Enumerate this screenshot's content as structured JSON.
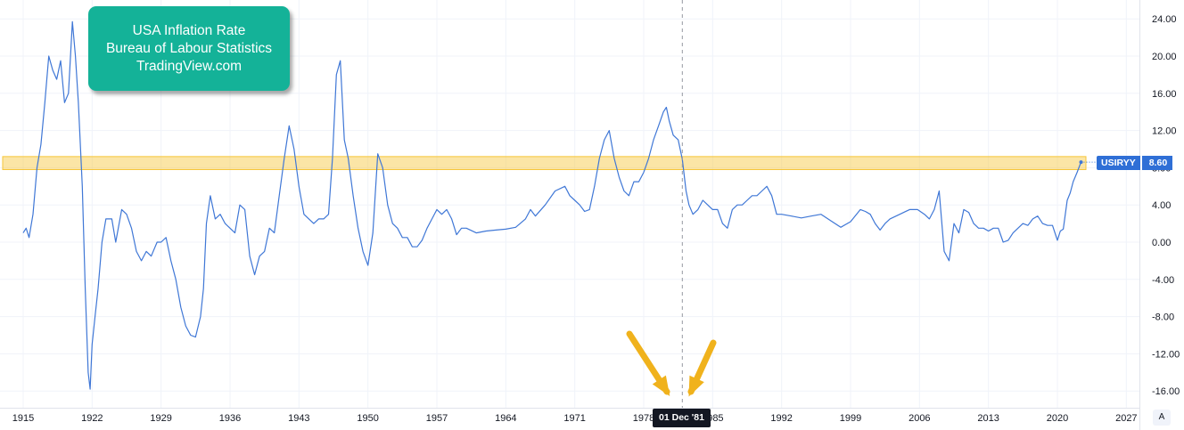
{
  "title_box": {
    "line1": "USA Inflation Rate",
    "line2": "Bureau of Labour Statistics",
    "line3": "TradingView.com"
  },
  "symbol": {
    "name": "USIRYY",
    "value": "8.60"
  },
  "crosshair_label": "01 Dec '81",
  "auto_label": "A",
  "colors": {
    "line": "#3f77d6",
    "highlight": "#f6c63a",
    "title_bg": "#14b298",
    "arrow": "#f0b21c",
    "symbol_bg": "#2f6fd6"
  },
  "chart_data": {
    "type": "line",
    "title": "USA Inflation Rate",
    "series": [
      {
        "name": "USIRYY",
        "x": [
          1915.0,
          1915.3,
          1915.6,
          1916.0,
          1916.4,
          1916.8,
          1917.2,
          1917.6,
          1918.0,
          1918.4,
          1918.8,
          1919.2,
          1919.6,
          1920.0,
          1920.3,
          1920.6,
          1921.0,
          1921.3,
          1921.6,
          1921.8,
          1922.0,
          1922.3,
          1922.6,
          1923.0,
          1923.4,
          1924.0,
          1924.4,
          1925.0,
          1925.5,
          1926.0,
          1926.5,
          1927.0,
          1927.5,
          1928.0,
          1928.6,
          1929.0,
          1929.5,
          1930.0,
          1930.5,
          1931.0,
          1931.5,
          1932.0,
          1932.5,
          1933.0,
          1933.3,
          1933.6,
          1934.0,
          1934.5,
          1935.0,
          1935.5,
          1936.0,
          1936.5,
          1937.0,
          1937.5,
          1938.0,
          1938.5,
          1939.0,
          1939.5,
          1940.0,
          1940.5,
          1941.0,
          1941.5,
          1942.0,
          1942.5,
          1943.0,
          1943.5,
          1944.0,
          1944.5,
          1945.0,
          1945.5,
          1946.0,
          1946.4,
          1946.8,
          1947.2,
          1947.6,
          1948.0,
          1948.5,
          1949.0,
          1949.5,
          1950.0,
          1950.5,
          1951.0,
          1951.5,
          1952.0,
          1952.5,
          1953.0,
          1953.5,
          1954.0,
          1954.5,
          1955.0,
          1955.5,
          1956.0,
          1956.5,
          1957.0,
          1957.5,
          1958.0,
          1958.5,
          1959.0,
          1959.5,
          1960.0,
          1961.0,
          1962.0,
          1963.0,
          1964.0,
          1965.0,
          1966.0,
          1966.5,
          1967.0,
          1968.0,
          1969.0,
          1970.0,
          1970.5,
          1971.0,
          1971.5,
          1972.0,
          1972.5,
          1973.0,
          1973.5,
          1974.0,
          1974.5,
          1975.0,
          1975.5,
          1976.0,
          1976.5,
          1977.0,
          1977.5,
          1978.0,
          1978.5,
          1979.0,
          1979.5,
          1980.0,
          1980.3,
          1980.6,
          1981.0,
          1981.5,
          1981.92,
          1982.3,
          1982.6,
          1983.0,
          1983.5,
          1984.0,
          1984.5,
          1985.0,
          1985.5,
          1986.0,
          1986.5,
          1987.0,
          1987.5,
          1988.0,
          1988.5,
          1989.0,
          1989.5,
          1990.0,
          1990.5,
          1991.0,
          1991.5,
          1992.0,
          1993.0,
          1994.0,
          1995.0,
          1996.0,
          1997.0,
          1998.0,
          1999.0,
          2000.0,
          2000.5,
          2001.0,
          2001.5,
          2002.0,
          2002.5,
          2003.0,
          2004.0,
          2005.0,
          2005.8,
          2006.5,
          2007.0,
          2007.5,
          2008.0,
          2008.5,
          2009.0,
          2009.5,
          2010.0,
          2010.5,
          2011.0,
          2011.5,
          2012.0,
          2012.5,
          2013.0,
          2013.5,
          2014.0,
          2014.5,
          2015.0,
          2015.5,
          2016.0,
          2016.5,
          2017.0,
          2017.5,
          2018.0,
          2018.5,
          2019.0,
          2019.5,
          2020.0,
          2020.3,
          2020.6,
          2021.0,
          2021.3,
          2021.6,
          2022.0,
          2022.4
        ],
        "values": [
          1.0,
          1.5,
          0.5,
          3.0,
          8.0,
          10.5,
          15.0,
          20.0,
          18.5,
          17.5,
          19.5,
          15.0,
          16.0,
          23.7,
          20.0,
          15.0,
          6.0,
          -5.0,
          -14.0,
          -15.8,
          -11.0,
          -8.0,
          -5.0,
          0.0,
          2.5,
          2.5,
          0.0,
          3.5,
          3.0,
          1.5,
          -1.0,
          -2.0,
          -1.0,
          -1.5,
          0.0,
          0.0,
          0.5,
          -2.0,
          -4.0,
          -7.0,
          -9.0,
          -10.0,
          -10.2,
          -8.0,
          -5.0,
          2.0,
          5.0,
          2.5,
          3.0,
          2.0,
          1.5,
          1.0,
          4.0,
          3.5,
          -1.5,
          -3.5,
          -1.5,
          -1.0,
          1.5,
          1.0,
          5.0,
          9.0,
          12.5,
          10.0,
          6.0,
          3.0,
          2.5,
          2.0,
          2.5,
          2.5,
          3.0,
          9.0,
          18.0,
          19.5,
          11.0,
          9.0,
          5.0,
          1.5,
          -1.0,
          -2.5,
          1.0,
          9.5,
          8.0,
          4.0,
          2.0,
          1.5,
          0.5,
          0.5,
          -0.5,
          -0.5,
          0.2,
          1.5,
          2.5,
          3.5,
          3.0,
          3.5,
          2.5,
          0.8,
          1.5,
          1.5,
          1.0,
          1.2,
          1.3,
          1.4,
          1.6,
          2.5,
          3.5,
          2.8,
          4.0,
          5.5,
          6.0,
          5.0,
          4.5,
          4.0,
          3.3,
          3.5,
          6.0,
          9.0,
          11.0,
          12.0,
          9.0,
          7.0,
          5.5,
          5.0,
          6.5,
          6.5,
          7.5,
          9.0,
          11.0,
          12.5,
          14.0,
          14.5,
          13.0,
          11.5,
          11.0,
          8.9,
          5.5,
          4.0,
          3.0,
          3.5,
          4.5,
          4.0,
          3.5,
          3.5,
          2.0,
          1.5,
          3.5,
          4.0,
          4.0,
          4.5,
          5.0,
          5.0,
          5.5,
          6.0,
          5.0,
          3.0,
          3.0,
          2.8,
          2.6,
          2.8,
          3.0,
          2.3,
          1.6,
          2.2,
          3.5,
          3.3,
          3.0,
          2.0,
          1.3,
          2.0,
          2.5,
          3.0,
          3.5,
          3.5,
          3.0,
          2.5,
          3.5,
          5.5,
          -1.0,
          -2.0,
          2.0,
          1.0,
          3.5,
          3.2,
          2.0,
          1.5,
          1.5,
          1.2,
          1.5,
          1.5,
          0.0,
          0.2,
          1.0,
          1.5,
          2.0,
          1.8,
          2.5,
          2.8,
          2.0,
          1.8,
          1.8,
          0.2,
          1.2,
          1.4,
          4.5,
          5.3,
          6.5,
          7.5,
          8.6
        ]
      }
    ],
    "x_ticks": [
      "1915",
      "1922",
      "1929",
      "1936",
      "1943",
      "1950",
      "1957",
      "1964",
      "1971",
      "1978",
      "1985",
      "1992",
      "1999",
      "2006",
      "2013",
      "2020",
      "2027"
    ],
    "y_ticks": [
      "24.00",
      "20.00",
      "16.00",
      "12.00",
      "8.00",
      "4.00",
      "0.00",
      "-4.00",
      "-8.00",
      "-12.00",
      "-16.00"
    ],
    "xlim": [
      1914,
      2028
    ],
    "ylim": [
      -17,
      25
    ],
    "grid": true,
    "highlight_band": [
      7.8,
      9.2
    ]
  }
}
